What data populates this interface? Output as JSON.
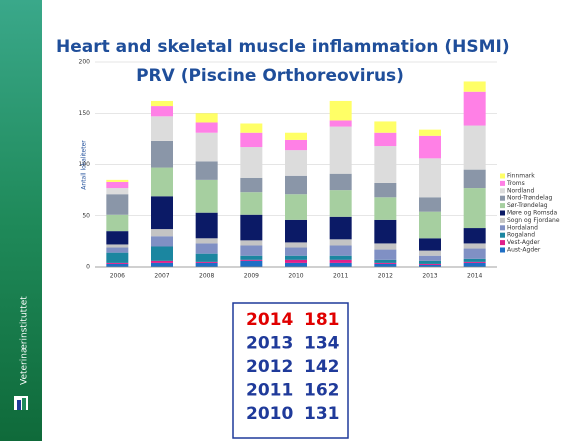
{
  "sidebar": {
    "text": "Veterinærinstituttet"
  },
  "chart_data": {
    "type": "bar",
    "stacked": true,
    "title": "Heart and skeletal muscle inflammation (HSMI)",
    "subtitle": "PRV (Piscine Orthoreovirus)",
    "y_label": "Antall lokaliteter",
    "categories": [
      "2006",
      "2007",
      "2008",
      "2009",
      "2010",
      "2011",
      "2012",
      "2013",
      "2014"
    ],
    "ylim": [
      0,
      200
    ],
    "yticks": [
      0,
      50,
      100,
      150,
      200
    ],
    "grid": true,
    "legend": "right",
    "series": [
      {
        "name": "Aust-Agder",
        "color": "#1f6fc5",
        "values": [
          3,
          4,
          4,
          6,
          4,
          4,
          3,
          2,
          4
        ]
      },
      {
        "name": "Vest-Agder",
        "color": "#e0208a",
        "values": [
          1,
          2,
          1,
          1,
          3,
          3,
          1,
          1,
          1
        ]
      },
      {
        "name": "Rogaland",
        "color": "#1b86a0",
        "values": [
          10,
          14,
          8,
          4,
          4,
          4,
          3,
          3,
          3
        ]
      },
      {
        "name": "Hordaland",
        "color": "#8090c4",
        "values": [
          5,
          10,
          10,
          10,
          8,
          10,
          10,
          5,
          10
        ]
      },
      {
        "name": "Sogn og Fjordane",
        "color": "#c4c4c4",
        "values": [
          3,
          7,
          5,
          5,
          5,
          6,
          6,
          5,
          5
        ]
      },
      {
        "name": "Møre og Romsda",
        "color": "#0b1a66",
        "values": [
          13,
          32,
          25,
          25,
          22,
          22,
          23,
          12,
          15
        ]
      },
      {
        "name": "Sør-Trøndelag",
        "color": "#a6cfa0",
        "values": [
          16,
          28,
          32,
          22,
          25,
          26,
          22,
          26,
          39
        ]
      },
      {
        "name": "Nord-Trøndelag",
        "color": "#8a96a8",
        "values": [
          20,
          26,
          18,
          14,
          18,
          16,
          14,
          14,
          18
        ]
      },
      {
        "name": "Nordland",
        "color": "#dcdcdc",
        "values": [
          6,
          24,
          28,
          30,
          25,
          46,
          36,
          38,
          43
        ]
      },
      {
        "name": "Troms",
        "color": "#ff80e6",
        "values": [
          6,
          10,
          10,
          14,
          10,
          6,
          13,
          22,
          33
        ]
      },
      {
        "name": "Finnmark",
        "color": "#ffff66",
        "values": [
          2,
          5,
          9,
          9,
          7,
          19,
          11,
          6,
          10
        ]
      }
    ]
  },
  "table": {
    "rows": [
      {
        "year": 2014,
        "value": 181,
        "color": "#e00000"
      },
      {
        "year": 2013,
        "value": 134,
        "color": "#1f3a9a"
      },
      {
        "year": 2012,
        "value": 142,
        "color": "#1f3a9a"
      },
      {
        "year": 2011,
        "value": 162,
        "color": "#1f3a9a"
      },
      {
        "year": 2010,
        "value": 131,
        "color": "#1f3a9a"
      }
    ]
  }
}
